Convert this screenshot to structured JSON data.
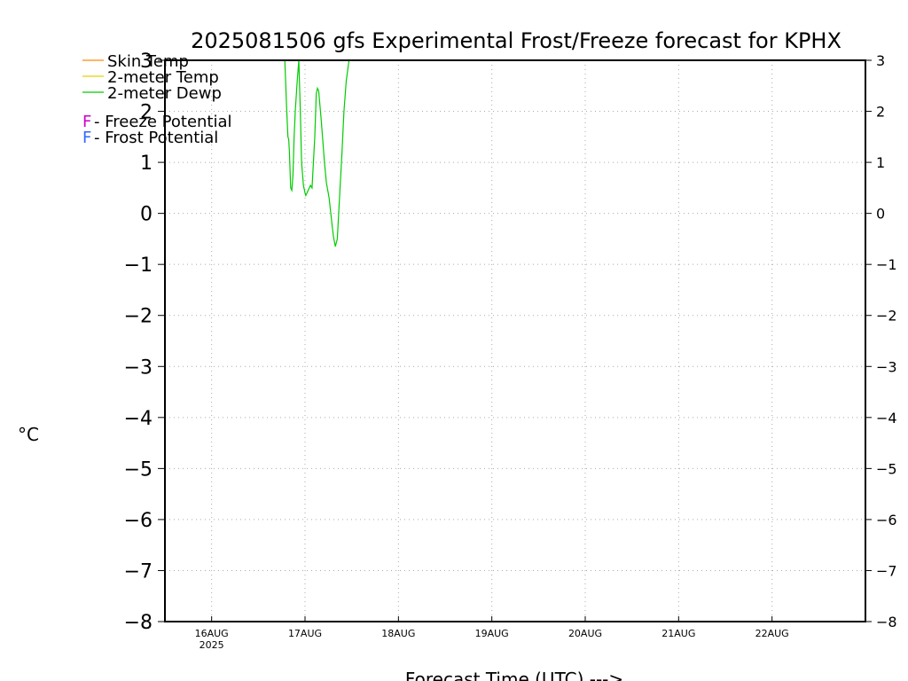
{
  "chart_data": {
    "type": "line",
    "title": "2025081506 gfs Experimental Frost/Freeze forecast for KPHX",
    "ylabel": "°C",
    "xlabel": "Forecast Time (UTC) --->",
    "ylim": [
      -8,
      3
    ],
    "yticks": [
      3,
      2,
      1,
      0,
      -1,
      -2,
      -3,
      -4,
      -5,
      -6,
      -7,
      -8
    ],
    "yticklabels": [
      "3",
      "2",
      "1",
      "0",
      "−1",
      "−2",
      "−3",
      "−4",
      "−5",
      "−6",
      "−7",
      "−8"
    ],
    "xlim": [
      6,
      186
    ],
    "x_units": "hours after 2025-08-15 06 UTC",
    "xticks": [
      {
        "x": 18,
        "label": "16AUG",
        "sub": "2025"
      },
      {
        "x": 42,
        "label": "17AUG",
        "sub": ""
      },
      {
        "x": 66,
        "label": "18AUG",
        "sub": ""
      },
      {
        "x": 90,
        "label": "19AUG",
        "sub": ""
      },
      {
        "x": 114,
        "label": "20AUG",
        "sub": ""
      },
      {
        "x": 138,
        "label": "21AUG",
        "sub": ""
      },
      {
        "x": 162,
        "label": "22AUG",
        "sub": ""
      }
    ],
    "grid": true,
    "legend": {
      "position": "top-left",
      "entries": [
        {
          "label": "Skin Temp",
          "color": "#ff8c00"
        },
        {
          "label": "2-meter Temp",
          "color": "#e8d000"
        },
        {
          "label": "2-meter Dewp",
          "color": "#00cc00"
        }
      ],
      "markers": [
        {
          "symbol": "F",
          "text": " - Freeze Potential",
          "color": "#cc00cc"
        },
        {
          "symbol": "F",
          "text": " - Frost Potential",
          "color": "#3366ff"
        }
      ]
    },
    "series": [
      {
        "name": "Skin Temp",
        "color": "#ff8c00",
        "x": [],
        "y": []
      },
      {
        "name": "2-meter Temp",
        "color": "#e8d000",
        "x": [],
        "y": []
      },
      {
        "name": "2-meter Dewp",
        "color": "#00cc00",
        "x": [
          36.8,
          37.3,
          37.6,
          37.8,
          38.0,
          38.3,
          38.6,
          38.9,
          39.2,
          39.5,
          40.0,
          40.4,
          40.8,
          41.1,
          41.6,
          42.0,
          42.2,
          43.4,
          43.8,
          44.5,
          44.9,
          45.2,
          45.5,
          46.2,
          47.0,
          47.5,
          48.2,
          48.9,
          49.3,
          49.8,
          50.3,
          51.0,
          51.5,
          52.0,
          52.6,
          53.3,
          54.1,
          54.5,
          55.1,
          55.6
        ],
        "y": [
          3.0,
          2.0,
          1.5,
          1.45,
          1.2,
          0.5,
          0.45,
          0.75,
          1.5,
          2.0,
          2.6,
          3.0,
          2.0,
          1.0,
          0.55,
          0.4,
          0.35,
          0.55,
          0.5,
          1.5,
          2.35,
          2.45,
          2.4,
          1.8,
          1.0,
          0.6,
          0.3,
          -0.2,
          -0.45,
          -0.65,
          -0.5,
          0.5,
          1.2,
          2.0,
          2.6,
          3.0,
          3.0,
          3.0,
          3.0,
          3.0
        ]
      }
    ]
  }
}
